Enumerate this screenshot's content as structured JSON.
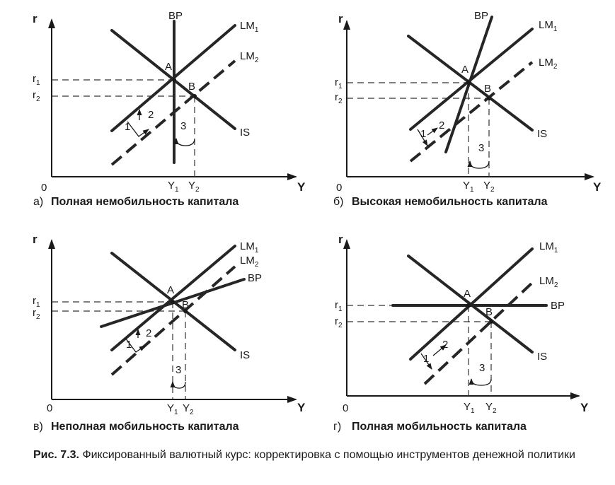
{
  "figure": {
    "caption_number": "Рис. 7.3.",
    "caption_text": "Фиксированный валютный курс: корректировка с помощью инструментов денежной политики"
  },
  "panels": [
    {
      "id": "a",
      "letter": "а)",
      "title": "Полная немобильность капитала",
      "axis_y": "r",
      "axis_x": "Y",
      "origin": "0",
      "r1": "r",
      "r1_sub": "1",
      "r2": "r",
      "r2_sub": "2",
      "y1": "Y",
      "y1_sub": "1",
      "y2": "Y",
      "y2_sub": "2",
      "lm1": "LM",
      "lm1_sub": "1",
      "lm2": "LM",
      "lm2_sub": "2",
      "is": "IS",
      "bp": "BP",
      "point_a": "A",
      "point_b": "B",
      "step1": "1",
      "step2": "2",
      "step3": "3"
    },
    {
      "id": "b",
      "letter": "б)",
      "title": "Высокая немобильность капитала",
      "axis_y": "r",
      "axis_x": "Y",
      "origin": "0",
      "r1": "r",
      "r1_sub": "1",
      "r2": "r",
      "r2_sub": "2",
      "y1": "Y",
      "y1_sub": "1",
      "y2": "Y",
      "y2_sub": "2",
      "lm1": "LM",
      "lm1_sub": "1",
      "lm2": "LM",
      "lm2_sub": "2",
      "is": "IS",
      "bp": "BP",
      "point_a": "A",
      "point_b": "B",
      "step1": "1",
      "step2": "2",
      "step3": "3"
    },
    {
      "id": "c",
      "letter": "в)",
      "title": "Неполная мобильность капитала",
      "axis_y": "r",
      "axis_x": "Y",
      "origin": "0",
      "r1": "r",
      "r1_sub": "1",
      "r2": "r",
      "r2_sub": "2",
      "y1": "Y",
      "y1_sub": "1",
      "y2": "Y",
      "y2_sub": "2",
      "lm1": "LM",
      "lm1_sub": "1",
      "lm2": "LM",
      "lm2_sub": "2",
      "is": "IS",
      "bp": "BP",
      "point_a": "A",
      "point_b": "B",
      "step1": "1",
      "step2": "2",
      "step3": "3"
    },
    {
      "id": "d",
      "letter": "г)",
      "title": "Полная мобильность капитала",
      "axis_y": "r",
      "axis_x": "Y",
      "origin": "0",
      "r1": "r",
      "r1_sub": "1",
      "r2": "r",
      "r2_sub": "2",
      "y1": "Y",
      "y1_sub": "1",
      "y2": "Y",
      "y2_sub": "2",
      "lm1": "LM",
      "lm1_sub": "1",
      "lm2": "LM",
      "lm2_sub": "2",
      "is": "IS",
      "bp": "BP",
      "point_a": "A",
      "point_b": "B",
      "step1": "1",
      "step2": "2",
      "step3": "3"
    }
  ]
}
